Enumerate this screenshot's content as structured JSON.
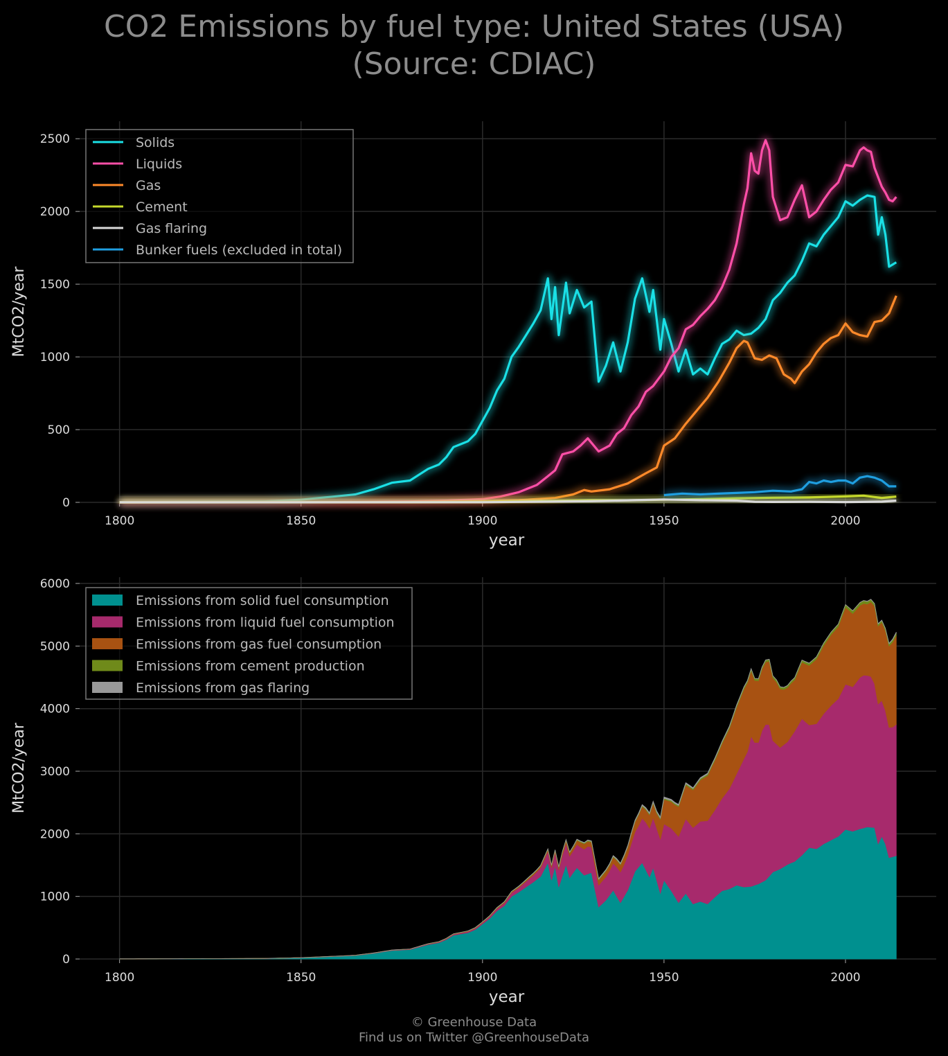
{
  "title_line1": "CO2 Emissions by fuel type: United States (USA)",
  "title_line2": "(Source: CDIAC)",
  "footer_line1": "© Greenhouse Data",
  "footer_line2": "Find us on Twitter @GreenhouseData",
  "chart_data": [
    {
      "type": "line",
      "xlabel": "year",
      "ylabel": "MtCO2/year",
      "xlim": [
        1789,
        2025
      ],
      "ylim": [
        0,
        2620
      ],
      "xticks": [
        1800,
        1850,
        1900,
        1950,
        2000
      ],
      "yticks": [
        0,
        500,
        1000,
        1500,
        2000,
        2500
      ],
      "grid": true,
      "legend": "top-left",
      "series": [
        {
          "name": "Solids",
          "color": "#1ae0e6",
          "points": [
            [
              1800,
              2
            ],
            [
              1840,
              6
            ],
            [
              1850,
              18
            ],
            [
              1855,
              30
            ],
            [
              1860,
              42
            ],
            [
              1865,
              55
            ],
            [
              1870,
              90
            ],
            [
              1875,
              135
            ],
            [
              1880,
              150
            ],
            [
              1885,
              230
            ],
            [
              1888,
              260
            ],
            [
              1890,
              310
            ],
            [
              1892,
              380
            ],
            [
              1894,
              400
            ],
            [
              1896,
              420
            ],
            [
              1898,
              470
            ],
            [
              1900,
              560
            ],
            [
              1902,
              650
            ],
            [
              1904,
              770
            ],
            [
              1906,
              850
            ],
            [
              1908,
              1000
            ],
            [
              1910,
              1070
            ],
            [
              1912,
              1150
            ],
            [
              1914,
              1230
            ],
            [
              1916,
              1320
            ],
            [
              1918,
              1540
            ],
            [
              1919,
              1260
            ],
            [
              1920,
              1480
            ],
            [
              1921,
              1150
            ],
            [
              1923,
              1510
            ],
            [
              1924,
              1300
            ],
            [
              1926,
              1460
            ],
            [
              1928,
              1340
            ],
            [
              1930,
              1380
            ],
            [
              1932,
              830
            ],
            [
              1934,
              940
            ],
            [
              1936,
              1100
            ],
            [
              1938,
              900
            ],
            [
              1940,
              1100
            ],
            [
              1942,
              1400
            ],
            [
              1944,
              1540
            ],
            [
              1946,
              1310
            ],
            [
              1947,
              1460
            ],
            [
              1949,
              1050
            ],
            [
              1950,
              1260
            ],
            [
              1952,
              1090
            ],
            [
              1954,
              900
            ],
            [
              1956,
              1050
            ],
            [
              1958,
              880
            ],
            [
              1960,
              920
            ],
            [
              1962,
              880
            ],
            [
              1964,
              990
            ],
            [
              1966,
              1090
            ],
            [
              1968,
              1120
            ],
            [
              1970,
              1180
            ],
            [
              1972,
              1150
            ],
            [
              1974,
              1160
            ],
            [
              1976,
              1200
            ],
            [
              1978,
              1260
            ],
            [
              1980,
              1390
            ],
            [
              1982,
              1440
            ],
            [
              1984,
              1510
            ],
            [
              1986,
              1560
            ],
            [
              1988,
              1660
            ],
            [
              1990,
              1780
            ],
            [
              1992,
              1760
            ],
            [
              1994,
              1840
            ],
            [
              1996,
              1900
            ],
            [
              1998,
              1960
            ],
            [
              2000,
              2070
            ],
            [
              2002,
              2040
            ],
            [
              2004,
              2080
            ],
            [
              2006,
              2110
            ],
            [
              2008,
              2100
            ],
            [
              2009,
              1840
            ],
            [
              2010,
              1960
            ],
            [
              2011,
              1840
            ],
            [
              2012,
              1620
            ],
            [
              2014,
              1650
            ]
          ]
        },
        {
          "name": "Liquids",
          "color": "#ff4fa8",
          "points": [
            [
              1800,
              0
            ],
            [
              1860,
              2
            ],
            [
              1880,
              6
            ],
            [
              1890,
              12
            ],
            [
              1900,
              22
            ],
            [
              1905,
              40
            ],
            [
              1910,
              70
            ],
            [
              1915,
              120
            ],
            [
              1918,
              180
            ],
            [
              1920,
              220
            ],
            [
              1922,
              330
            ],
            [
              1925,
              350
            ],
            [
              1927,
              390
            ],
            [
              1929,
              440
            ],
            [
              1932,
              350
            ],
            [
              1935,
              390
            ],
            [
              1937,
              470
            ],
            [
              1939,
              510
            ],
            [
              1941,
              600
            ],
            [
              1943,
              660
            ],
            [
              1945,
              760
            ],
            [
              1947,
              800
            ],
            [
              1950,
              900
            ],
            [
              1952,
              1000
            ],
            [
              1954,
              1060
            ],
            [
              1956,
              1190
            ],
            [
              1958,
              1220
            ],
            [
              1960,
              1280
            ],
            [
              1962,
              1330
            ],
            [
              1964,
              1390
            ],
            [
              1966,
              1480
            ],
            [
              1968,
              1600
            ],
            [
              1970,
              1780
            ],
            [
              1972,
              2050
            ],
            [
              1973,
              2160
            ],
            [
              1974,
              2400
            ],
            [
              1975,
              2280
            ],
            [
              1976,
              2260
            ],
            [
              1977,
              2420
            ],
            [
              1978,
              2490
            ],
            [
              1979,
              2420
            ],
            [
              1980,
              2100
            ],
            [
              1982,
              1940
            ],
            [
              1984,
              1960
            ],
            [
              1986,
              2080
            ],
            [
              1988,
              2180
            ],
            [
              1990,
              1960
            ],
            [
              1992,
              2000
            ],
            [
              1994,
              2080
            ],
            [
              1996,
              2150
            ],
            [
              1998,
              2200
            ],
            [
              2000,
              2320
            ],
            [
              2002,
              2310
            ],
            [
              2004,
              2420
            ],
            [
              2005,
              2440
            ],
            [
              2006,
              2420
            ],
            [
              2007,
              2410
            ],
            [
              2008,
              2300
            ],
            [
              2010,
              2170
            ],
            [
              2011,
              2130
            ],
            [
              2012,
              2080
            ],
            [
              2013,
              2070
            ],
            [
              2014,
              2100
            ]
          ]
        },
        {
          "name": "Gas",
          "color": "#ff8a2a",
          "points": [
            [
              1800,
              0
            ],
            [
              1880,
              2
            ],
            [
              1900,
              8
            ],
            [
              1910,
              15
            ],
            [
              1920,
              30
            ],
            [
              1925,
              55
            ],
            [
              1928,
              85
            ],
            [
              1930,
              75
            ],
            [
              1935,
              90
            ],
            [
              1940,
              130
            ],
            [
              1945,
              200
            ],
            [
              1948,
              240
            ],
            [
              1950,
              390
            ],
            [
              1953,
              440
            ],
            [
              1956,
              540
            ],
            [
              1959,
              630
            ],
            [
              1962,
              720
            ],
            [
              1965,
              830
            ],
            [
              1968,
              960
            ],
            [
              1970,
              1060
            ],
            [
              1972,
              1110
            ],
            [
              1973,
              1100
            ],
            [
              1975,
              990
            ],
            [
              1977,
              980
            ],
            [
              1979,
              1010
            ],
            [
              1981,
              990
            ],
            [
              1983,
              880
            ],
            [
              1985,
              850
            ],
            [
              1986,
              820
            ],
            [
              1988,
              900
            ],
            [
              1990,
              950
            ],
            [
              1992,
              1030
            ],
            [
              1994,
              1090
            ],
            [
              1996,
              1130
            ],
            [
              1998,
              1150
            ],
            [
              2000,
              1230
            ],
            [
              2002,
              1170
            ],
            [
              2004,
              1150
            ],
            [
              2006,
              1140
            ],
            [
              2008,
              1240
            ],
            [
              2010,
              1250
            ],
            [
              2012,
              1300
            ],
            [
              2014,
              1420
            ]
          ]
        },
        {
          "name": "Cement",
          "color": "#c5d82c",
          "points": [
            [
              1800,
              0
            ],
            [
              1880,
              1
            ],
            [
              1900,
              4
            ],
            [
              1920,
              10
            ],
            [
              1930,
              15
            ],
            [
              1940,
              14
            ],
            [
              1950,
              18
            ],
            [
              1960,
              22
            ],
            [
              1970,
              28
            ],
            [
              1980,
              32
            ],
            [
              1990,
              34
            ],
            [
              2000,
              41
            ],
            [
              2005,
              46
            ],
            [
              2010,
              30
            ],
            [
              2014,
              40
            ]
          ]
        },
        {
          "name": "Gas flaring",
          "color": "#d9d9d9",
          "points": [
            [
              1800,
              0
            ],
            [
              1900,
              1
            ],
            [
              1930,
              8
            ],
            [
              1950,
              20
            ],
            [
              1960,
              15
            ],
            [
              1970,
              12
            ],
            [
              1975,
              4
            ],
            [
              1980,
              3
            ],
            [
              1990,
              4
            ],
            [
              2000,
              2
            ],
            [
              2010,
              5
            ],
            [
              2014,
              12
            ]
          ]
        },
        {
          "name": "Bunker fuels (excluded in total)",
          "color": "#1f9ee0",
          "points": [
            [
              1950,
              50
            ],
            [
              1955,
              60
            ],
            [
              1960,
              55
            ],
            [
              1965,
              60
            ],
            [
              1970,
              65
            ],
            [
              1975,
              70
            ],
            [
              1980,
              80
            ],
            [
              1985,
              75
            ],
            [
              1988,
              90
            ],
            [
              1990,
              140
            ],
            [
              1992,
              130
            ],
            [
              1994,
              150
            ],
            [
              1996,
              140
            ],
            [
              1998,
              150
            ],
            [
              2000,
              150
            ],
            [
              2002,
              130
            ],
            [
              2004,
              170
            ],
            [
              2006,
              180
            ],
            [
              2008,
              170
            ],
            [
              2010,
              150
            ],
            [
              2012,
              110
            ],
            [
              2014,
              110
            ]
          ]
        }
      ]
    },
    {
      "type": "area",
      "stacked": true,
      "xlabel": "year",
      "ylabel": "MtCO2/year",
      "xlim": [
        1789,
        2025
      ],
      "ylim": [
        0,
        6100
      ],
      "xticks": [
        1800,
        1850,
        1900,
        1950,
        2000
      ],
      "yticks": [
        0,
        1000,
        2000,
        3000,
        4000,
        5000,
        6000
      ],
      "grid": true,
      "legend": "top-left",
      "series": [
        {
          "name": "Emissions from solid fuel consumption",
          "color": "#00908f",
          "ref": 0
        },
        {
          "name": "Emissions from liquid fuel consumption",
          "color": "#a72a6c",
          "ref": 1
        },
        {
          "name": "Emissions from gas fuel consumption",
          "color": "#a85212",
          "ref": 2
        },
        {
          "name": "Emissions from cement production",
          "color": "#6f8a1a",
          "ref": 3
        },
        {
          "name": "Emissions from gas flaring",
          "color": "#999999",
          "ref": 4
        }
      ]
    }
  ]
}
